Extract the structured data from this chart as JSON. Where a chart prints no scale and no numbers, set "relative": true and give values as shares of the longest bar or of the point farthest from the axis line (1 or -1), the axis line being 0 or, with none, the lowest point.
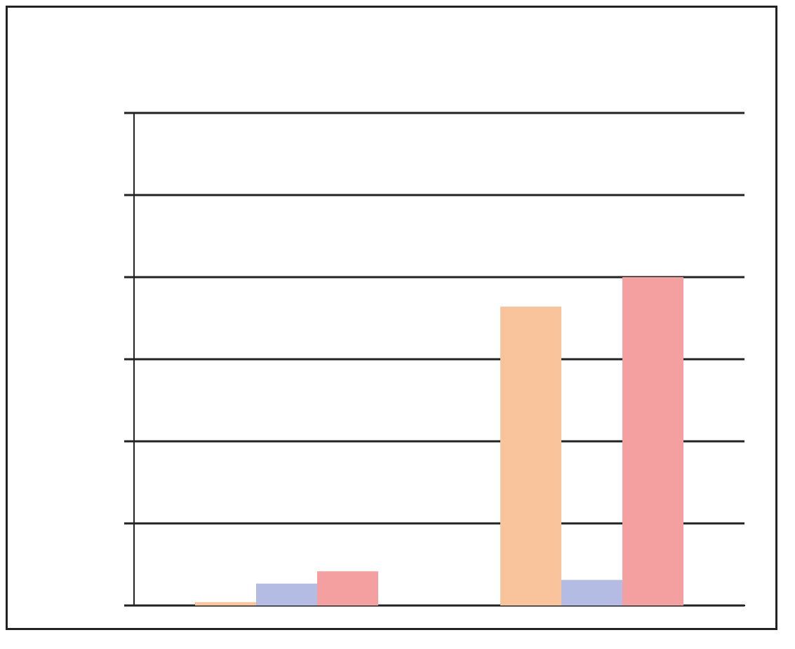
{
  "chart_data": {
    "type": "bar",
    "relative": true,
    "categories": [
      null,
      null
    ],
    "series": [
      {
        "color": "#f9c49c",
        "values": [
          0.01,
          0.91
        ]
      },
      {
        "color": "#b4bce4",
        "values": [
          0.067,
          0.078
        ]
      },
      {
        "color": "#f4a0a0",
        "values": [
          0.104,
          1
        ]
      }
    ],
    "grid": "y",
    "legend": false
  }
}
